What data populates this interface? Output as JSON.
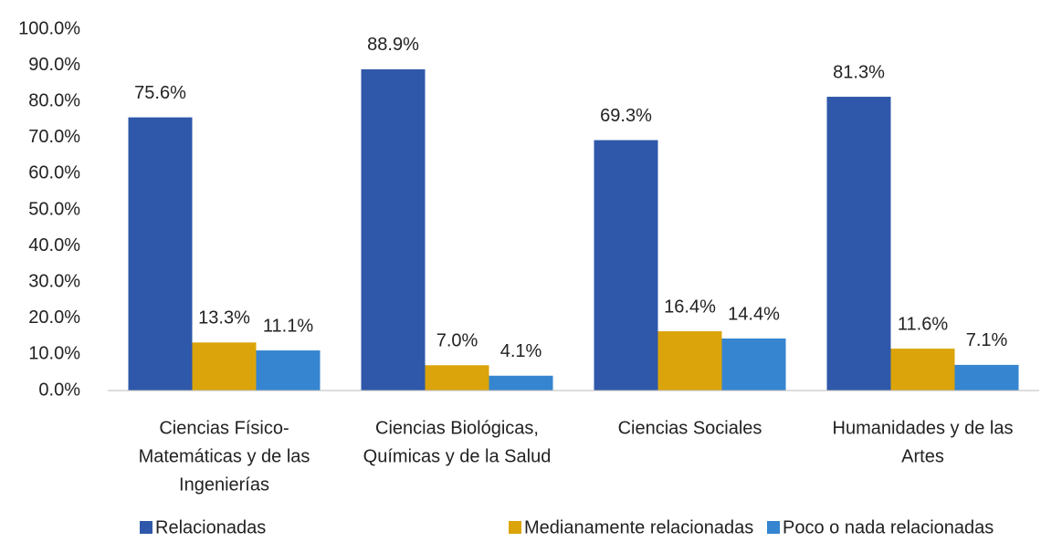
{
  "chart_data": {
    "type": "bar",
    "categories": [
      [
        "Ciencias Físico-",
        "Matemáticas y de las",
        "Ingenierías"
      ],
      [
        "Ciencias  Biológicas,",
        "Químicas y de la Salud"
      ],
      [
        "Ciencias Sociales"
      ],
      [
        "Humanidades y de las",
        "Artes"
      ]
    ],
    "series": [
      {
        "name": "Relacionadas",
        "color": "#2f58aa",
        "values": [
          75.6,
          88.9,
          69.3,
          81.3
        ],
        "value_labels": [
          "75.6%",
          "88.9%",
          "69.3%",
          "81.3%"
        ]
      },
      {
        "name": "Medianamente relacionadas",
        "color": "#dba40a",
        "values": [
          13.3,
          7.0,
          16.4,
          11.6
        ],
        "value_labels": [
          "13.3%",
          "7.0%",
          "16.4%",
          "11.6%"
        ]
      },
      {
        "name": "Poco o nada relacionadas",
        "color": "#3585d0",
        "values": [
          11.1,
          4.1,
          14.4,
          7.1
        ],
        "value_labels": [
          "11.1%",
          "4.1%",
          "14.4%",
          "7.1%"
        ]
      }
    ],
    "ylim": [
      0,
      100
    ],
    "yticks": [
      {
        "value": 0,
        "label": "0.0%"
      },
      {
        "value": 10,
        "label": "10.0%"
      },
      {
        "value": 20,
        "label": "20.0%"
      },
      {
        "value": 30,
        "label": "30.0%"
      },
      {
        "value": 40,
        "label": "40.0%"
      },
      {
        "value": 50,
        "label": "50.0%"
      },
      {
        "value": 60,
        "label": "60.0%"
      },
      {
        "value": 70,
        "label": "70.0%"
      },
      {
        "value": 80,
        "label": "80.0%"
      },
      {
        "value": 90,
        "label": "90.0%"
      },
      {
        "value": 100,
        "label": "100.0%"
      }
    ],
    "legend": "bottom"
  }
}
